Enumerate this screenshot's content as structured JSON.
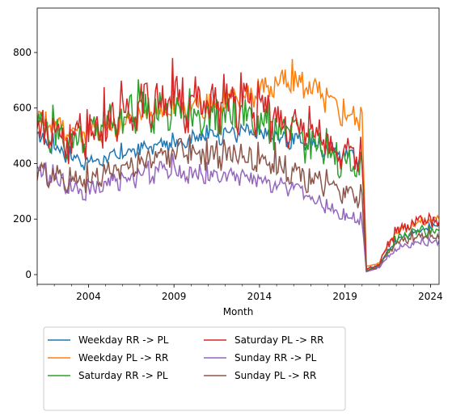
{
  "chart_data": {
    "type": "line",
    "title": "",
    "xlabel": "Month",
    "ylabel": "",
    "x_ticks": [
      "2004",
      "2009",
      "2014",
      "2019",
      "2024"
    ],
    "y_ticks": [
      "0",
      "200",
      "400",
      "600",
      "800"
    ],
    "xlim": [
      "2001-01",
      "2024-07"
    ],
    "ylim": [
      -35,
      960
    ],
    "grid": false,
    "legend_position": "below",
    "series_colors": [
      "#1f77b4",
      "#ff7f0e",
      "#2ca02c",
      "#d62728",
      "#9467bd",
      "#8c564b"
    ],
    "series": [
      {
        "name": "Weekday RR -> PL",
        "color": "#1f77b4",
        "points": [
          [
            "2001-01",
            490
          ],
          [
            "2002-01",
            460
          ],
          [
            "2003-01",
            420
          ],
          [
            "2004-01",
            400
          ],
          [
            "2005-01",
            415
          ],
          [
            "2006-01",
            430
          ],
          [
            "2007-01",
            450
          ],
          [
            "2008-01",
            460
          ],
          [
            "2009-01",
            470
          ],
          [
            "2010-01",
            490
          ],
          [
            "2011-01",
            500
          ],
          [
            "2012-01",
            505
          ],
          [
            "2013-01",
            510
          ],
          [
            "2014-01",
            500
          ],
          [
            "2015-01",
            490
          ],
          [
            "2016-01",
            480
          ],
          [
            "2017-01",
            470
          ],
          [
            "2018-01",
            450
          ],
          [
            "2019-01",
            430
          ],
          [
            "2020-01",
            415
          ],
          [
            "2020-04",
            20
          ],
          [
            "2021-01",
            35
          ],
          [
            "2021-07",
            85
          ],
          [
            "2022-01",
            120
          ],
          [
            "2022-07",
            140
          ],
          [
            "2023-01",
            150
          ],
          [
            "2023-07",
            160
          ],
          [
            "2024-01",
            170
          ],
          [
            "2024-07",
            180
          ]
        ]
      },
      {
        "name": "Weekday PL -> RR",
        "color": "#ff7f0e",
        "points": [
          [
            "2001-01",
            560
          ],
          [
            "2002-01",
            540
          ],
          [
            "2003-01",
            510
          ],
          [
            "2004-01",
            510
          ],
          [
            "2005-01",
            520
          ],
          [
            "2006-01",
            540
          ],
          [
            "2007-01",
            560
          ],
          [
            "2008-01",
            580
          ],
          [
            "2009-01",
            590
          ],
          [
            "2010-01",
            600
          ],
          [
            "2011-01",
            610
          ],
          [
            "2012-01",
            620
          ],
          [
            "2013-01",
            640
          ],
          [
            "2014-01",
            660
          ],
          [
            "2015-01",
            680
          ],
          [
            "2016-01",
            690
          ],
          [
            "2017-01",
            670
          ],
          [
            "2018-01",
            620
          ],
          [
            "2019-01",
            570
          ],
          [
            "2020-01",
            560
          ],
          [
            "2020-04",
            30
          ],
          [
            "2021-01",
            40
          ],
          [
            "2021-07",
            110
          ],
          [
            "2022-01",
            150
          ],
          [
            "2022-07",
            170
          ],
          [
            "2023-01",
            180
          ],
          [
            "2023-07",
            190
          ],
          [
            "2024-01",
            195
          ],
          [
            "2024-07",
            200
          ]
        ]
      },
      {
        "name": "Saturday RR -> PL",
        "color": "#2ca02c",
        "points": [
          [
            "2001-01",
            540
          ],
          [
            "2002-01",
            500
          ],
          [
            "2003-01",
            470
          ],
          [
            "2004-01",
            500
          ],
          [
            "2005-01",
            530
          ],
          [
            "2006-01",
            560
          ],
          [
            "2007-01",
            590
          ],
          [
            "2008-01",
            600
          ],
          [
            "2009-01",
            580
          ],
          [
            "2010-01",
            570
          ],
          [
            "2011-01",
            560
          ],
          [
            "2012-01",
            560
          ],
          [
            "2013-01",
            560
          ],
          [
            "2014-01",
            550
          ],
          [
            "2015-01",
            520
          ],
          [
            "2016-01",
            500
          ],
          [
            "2017-01",
            460
          ],
          [
            "2018-01",
            430
          ],
          [
            "2019-01",
            400
          ],
          [
            "2020-01",
            380
          ],
          [
            "2020-04",
            15
          ],
          [
            "2021-01",
            30
          ],
          [
            "2021-07",
            80
          ],
          [
            "2022-01",
            120
          ],
          [
            "2022-07",
            140
          ],
          [
            "2023-01",
            150
          ],
          [
            "2023-07",
            160
          ],
          [
            "2024-01",
            160
          ],
          [
            "2024-07",
            150
          ]
        ]
      },
      {
        "name": "Saturday PL -> RR",
        "color": "#d62728",
        "points": [
          [
            "2001-01",
            520
          ],
          [
            "2002-01",
            500
          ],
          [
            "2003-01",
            480
          ],
          [
            "2004-01",
            500
          ],
          [
            "2005-01",
            540
          ],
          [
            "2006-01",
            570
          ],
          [
            "2007-01",
            600
          ],
          [
            "2008-01",
            620
          ],
          [
            "2009-01",
            620
          ],
          [
            "2010-01",
            610
          ],
          [
            "2011-01",
            600
          ],
          [
            "2012-01",
            600
          ],
          [
            "2013-01",
            610
          ],
          [
            "2014-01",
            590
          ],
          [
            "2015-01",
            560
          ],
          [
            "2016-01",
            530
          ],
          [
            "2017-01",
            490
          ],
          [
            "2018-01",
            460
          ],
          [
            "2019-01",
            430
          ],
          [
            "2020-01",
            410
          ],
          [
            "2020-04",
            20
          ],
          [
            "2021-01",
            35
          ],
          [
            "2021-07",
            110
          ],
          [
            "2022-01",
            150
          ],
          [
            "2022-07",
            170
          ],
          [
            "2023-01",
            180
          ],
          [
            "2023-07",
            190
          ],
          [
            "2024-01",
            190
          ],
          [
            "2024-07",
            170
          ]
        ]
      },
      {
        "name": "Sunday RR -> PL",
        "color": "#9467bd",
        "points": [
          [
            "2001-01",
            370
          ],
          [
            "2002-01",
            340
          ],
          [
            "2003-01",
            310
          ],
          [
            "2004-01",
            300
          ],
          [
            "2005-01",
            320
          ],
          [
            "2006-01",
            340
          ],
          [
            "2007-01",
            360
          ],
          [
            "2008-01",
            370
          ],
          [
            "2009-01",
            370
          ],
          [
            "2010-01",
            360
          ],
          [
            "2011-01",
            350
          ],
          [
            "2012-01",
            350
          ],
          [
            "2013-01",
            350
          ],
          [
            "2014-01",
            340
          ],
          [
            "2015-01",
            320
          ],
          [
            "2016-01",
            300
          ],
          [
            "2017-01",
            270
          ],
          [
            "2018-01",
            240
          ],
          [
            "2019-01",
            210
          ],
          [
            "2020-01",
            195
          ],
          [
            "2020-04",
            10
          ],
          [
            "2021-01",
            25
          ],
          [
            "2021-07",
            65
          ],
          [
            "2022-01",
            90
          ],
          [
            "2022-07",
            105
          ],
          [
            "2023-01",
            110
          ],
          [
            "2023-07",
            115
          ],
          [
            "2024-01",
            115
          ],
          [
            "2024-07",
            110
          ]
        ]
      },
      {
        "name": "Sunday PL -> RR",
        "color": "#8c564b",
        "points": [
          [
            "2001-01",
            370
          ],
          [
            "2002-01",
            350
          ],
          [
            "2003-01",
            330
          ],
          [
            "2004-01",
            340
          ],
          [
            "2005-01",
            360
          ],
          [
            "2006-01",
            380
          ],
          [
            "2007-01",
            400
          ],
          [
            "2008-01",
            420
          ],
          [
            "2009-01",
            440
          ],
          [
            "2010-01",
            440
          ],
          [
            "2011-01",
            430
          ],
          [
            "2012-01",
            420
          ],
          [
            "2013-01",
            420
          ],
          [
            "2014-01",
            410
          ],
          [
            "2015-01",
            390
          ],
          [
            "2016-01",
            370
          ],
          [
            "2017-01",
            340
          ],
          [
            "2018-01",
            310
          ],
          [
            "2019-01",
            290
          ],
          [
            "2020-01",
            270
          ],
          [
            "2020-04",
            12
          ],
          [
            "2021-01",
            30
          ],
          [
            "2021-07",
            80
          ],
          [
            "2022-01",
            110
          ],
          [
            "2022-07",
            125
          ],
          [
            "2023-01",
            130
          ],
          [
            "2023-07",
            135
          ],
          [
            "2024-01",
            135
          ],
          [
            "2024-07",
            130
          ]
        ]
      }
    ]
  }
}
